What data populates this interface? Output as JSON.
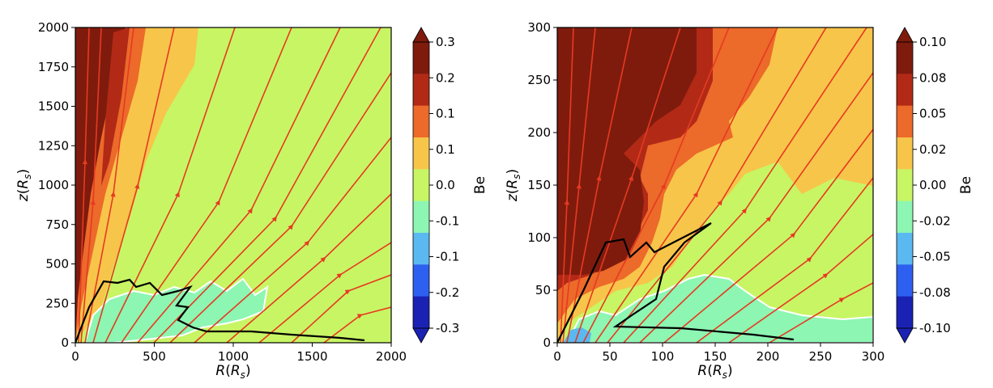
{
  "chart_data": [
    {
      "type": "heatmap",
      "xlabel": "R(R_s)",
      "ylabel": "z(R_s)",
      "xlim": [
        0,
        2000
      ],
      "ylim": [
        0,
        2000
      ],
      "x_ticks": [
        "0",
        "500",
        "1000",
        "1500",
        "2000"
      ],
      "y_ticks": [
        "0",
        "250",
        "500",
        "750",
        "1000",
        "1250",
        "1500",
        "1750",
        "2000"
      ],
      "colorbar_label": "Be",
      "colorbar_ticks": [
        "0.3",
        "0.2",
        "0.1",
        "0.1",
        "0.0",
        "-0.1",
        "-0.1",
        "-0.2",
        "-0.3"
      ],
      "colorbar_colors": [
        "#7f1b0d",
        "#b22a16",
        "#ec6a2a",
        "#f7c54a",
        "#c8f564",
        "#8cf6b2",
        "#5ab9f0",
        "#2d5ff0",
        "#1a22b4"
      ],
      "colorbar_extend_top_color": "#7f1b0d",
      "colorbar_extend_bottom_color": "#1a22b4",
      "background_color": "#c8f564",
      "streamline_color": "#e63a22",
      "contour_black_path": [
        [
          0,
          0
        ],
        [
          200,
          400
        ],
        [
          330,
          370
        ],
        [
          380,
          320
        ],
        [
          480,
          390
        ],
        [
          540,
          360
        ],
        [
          640,
          240
        ],
        [
          700,
          180
        ],
        [
          640,
          130
        ],
        [
          710,
          80
        ],
        [
          800,
          60
        ],
        [
          1000,
          50
        ],
        [
          1250,
          40
        ],
        [
          1500,
          20
        ],
        [
          1760,
          10
        ]
      ]
    },
    {
      "type": "heatmap",
      "xlabel": "R(R_s)",
      "ylabel": "z(R_s)",
      "xlim": [
        0,
        300
      ],
      "ylim": [
        0,
        300
      ],
      "x_ticks": [
        "0",
        "50",
        "100",
        "150",
        "200",
        "250",
        "300"
      ],
      "y_ticks": [
        "0",
        "50",
        "100",
        "150",
        "200",
        "250",
        "300"
      ],
      "colorbar_label": "Be",
      "colorbar_ticks": [
        "0.10",
        "0.08",
        "0.05",
        "0.02",
        "0.00",
        "-0.02",
        "-0.05",
        "-0.08",
        "-0.10"
      ],
      "colorbar_colors": [
        "#7f1b0d",
        "#b22a16",
        "#ec6a2a",
        "#f7c54a",
        "#c8f564",
        "#8cf6b2",
        "#5ab9f0",
        "#2d5ff0",
        "#1a22b4"
      ],
      "colorbar_extend_top_color": "#7f1b0d",
      "colorbar_extend_bottom_color": "#1a22b4",
      "background_color": "#c8f564",
      "streamline_color": "#e63a22",
      "contour_black_path": [
        [
          0,
          0
        ],
        [
          50,
          70
        ],
        [
          70,
          100
        ],
        [
          80,
          90
        ],
        [
          75,
          80
        ],
        [
          110,
          95
        ],
        [
          148,
          112
        ],
        [
          120,
          90
        ],
        [
          100,
          75
        ],
        [
          90,
          35
        ],
        [
          70,
          15
        ],
        [
          120,
          12
        ],
        [
          170,
          8
        ],
        [
          222,
          3
        ]
      ]
    }
  ]
}
